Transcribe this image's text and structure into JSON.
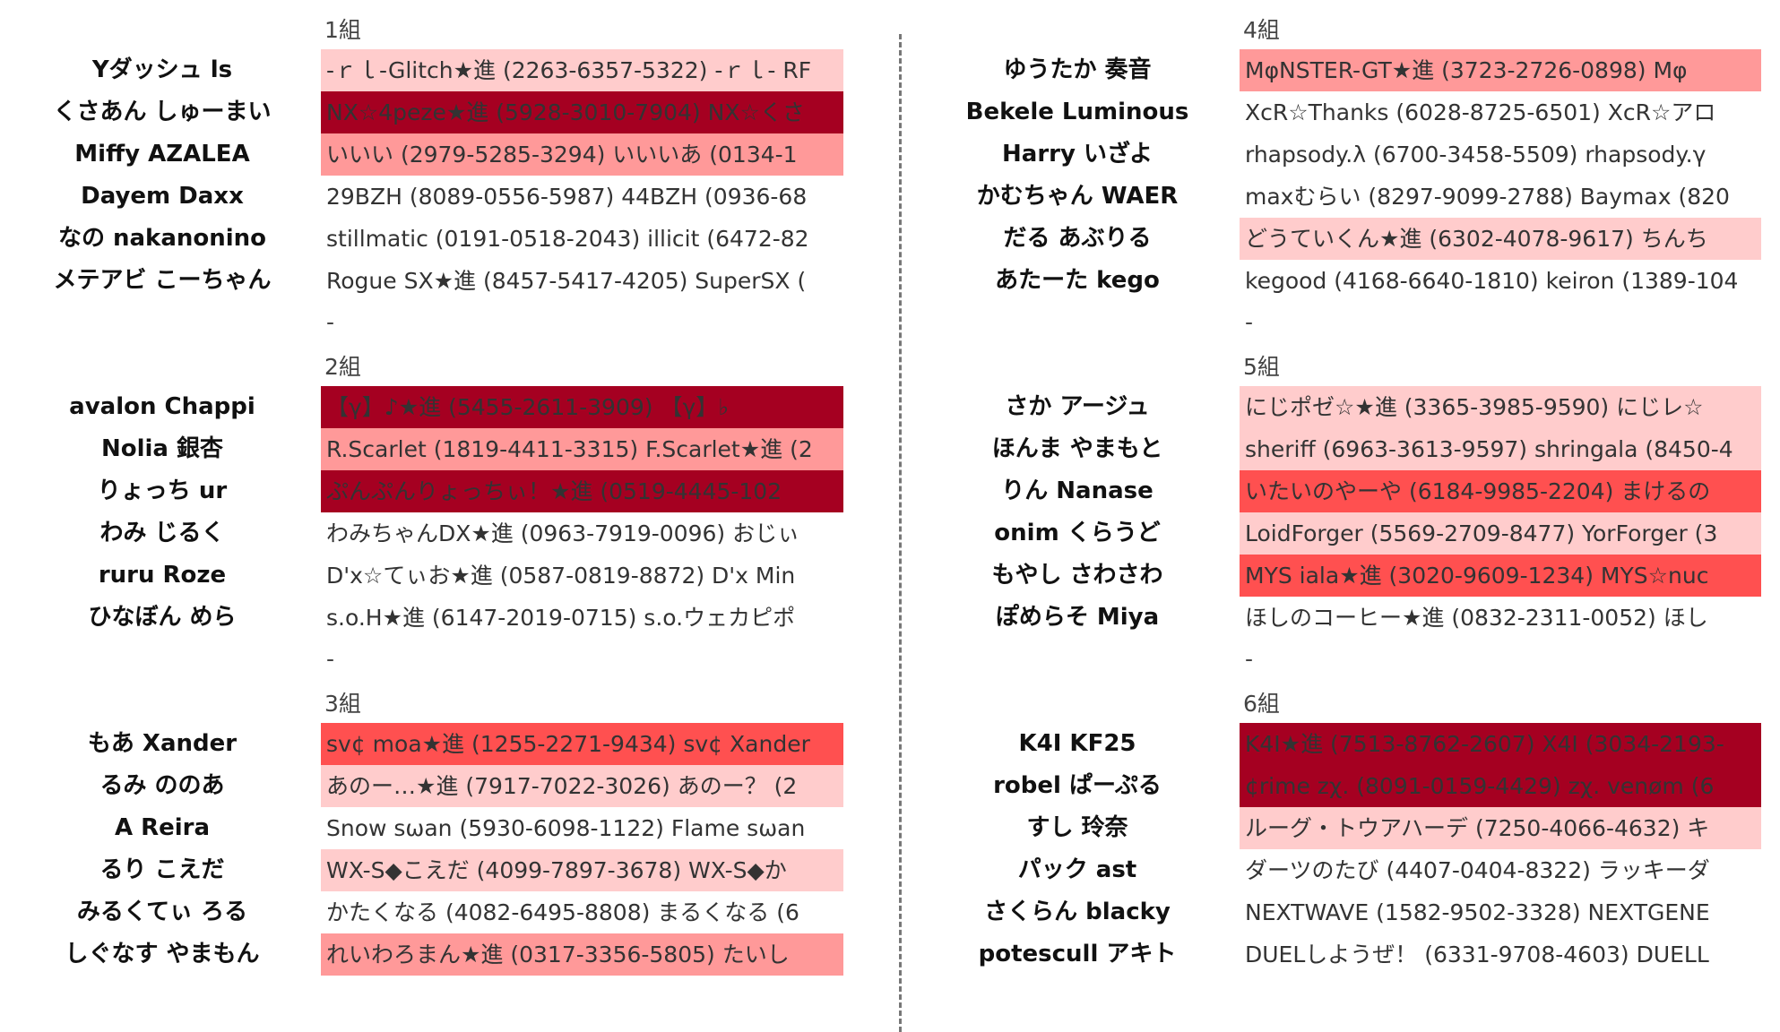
{
  "colors": {
    "light": "#ffcccc",
    "pink": "#ff9999",
    "red": "#ff5050",
    "dark": "#a50021",
    "none": "#ffffff"
  },
  "groups": [
    {
      "label": "1組",
      "trailer": "-",
      "rows": [
        {
          "name": "Yダッシュ ls",
          "value": "-ｒｌ-Glitch★進 (2263-6357-5322) -ｒｌ- RF",
          "color": "light"
        },
        {
          "name": "くさあん しゅーまい",
          "value": "NX☆4peze★進 (5928-3010-7904) NX☆くさ",
          "color": "dark"
        },
        {
          "name": "Miffy AZALEA",
          "value": "いいい (2979-5285-3294) いいいあ (0134-1",
          "color": "pink"
        },
        {
          "name": "Dayem Daxx",
          "value": "29BZH (8089-0556-5987) 44BZH (0936-68",
          "color": "none"
        },
        {
          "name": "なの nakanonino",
          "value": "stillmatic (0191-0518-2043) illicit (6472-82",
          "color": "none"
        },
        {
          "name": "メテアビ こーちゃん",
          "value": "Rogue SX★進 (8457-5417-4205) SuperSX (",
          "color": "none"
        }
      ]
    },
    {
      "label": "2組",
      "trailer": "-",
      "rows": [
        {
          "name": "avalon Chappi",
          "value": "【γ】♪★進 (5455-2611-3909) 【γ】♭",
          "color": "dark"
        },
        {
          "name": "Nolia 銀杏",
          "value": "R.Scarlet (1819-4411-3315) F.Scarlet★進 (2",
          "color": "pink"
        },
        {
          "name": "りょっち ur",
          "value": "ぷんぷんりょっちぃ！★進 (0519-4445-102",
          "color": "dark"
        },
        {
          "name": "わみ じるく",
          "value": "わみちゃんDX★進 (0963-7919-0096) おじぃ",
          "color": "none"
        },
        {
          "name": "ruru Roze",
          "value": "D'x☆てぃお★進 (0587-0819-8872) D'x Min",
          "color": "none"
        },
        {
          "name": "ひなぼん めら",
          "value": "s.o.H★進 (6147-2019-0715) s.o.ウェカピポ",
          "color": "none"
        }
      ]
    },
    {
      "label": "3組",
      "trailer": "",
      "rows": [
        {
          "name": "もあ Xander",
          "value": "sv¢ moa★進 (1255-2271-9434) sv¢ Xander",
          "color": "red"
        },
        {
          "name": "るみ ののあ",
          "value": "あのー…★進 (7917-7022-3026) あのー？ (2",
          "color": "light"
        },
        {
          "name": "A Reira",
          "value": "Snow sωan (5930-6098-1122) Flame sωan",
          "color": "none"
        },
        {
          "name": "るり こえだ",
          "value": "WX-S◆こえだ (4099-7897-3678) WX-S◆か",
          "color": "light"
        },
        {
          "name": "みるくてぃ ろる",
          "value": "かたくなる (4082-6495-8808) まるくなる (6",
          "color": "none"
        },
        {
          "name": "しぐなす やまもん",
          "value": "れいわろまん★進 (0317-3356-5805) たいし",
          "color": "pink"
        }
      ]
    },
    {
      "label": "4組",
      "trailer": "-",
      "rows": [
        {
          "name": "ゆうたか 奏音",
          "value": "MφNSTER-GT★進 (3723-2726-0898) Mφ",
          "color": "pink"
        },
        {
          "name": "Bekele Luminous",
          "value": "XcR☆Thanks (6028-8725-6501) XcR☆アロ",
          "color": "none"
        },
        {
          "name": "Harry いざよ",
          "value": "rhapsody.λ (6700-3458-5509) rhapsody.γ",
          "color": "none"
        },
        {
          "name": "かむちゃん WAER",
          "value": "maxむらい (8297-9099-2788) Baymax (820",
          "color": "none"
        },
        {
          "name": "だる あぶりる",
          "value": "どうていくん★進 (6302-4078-9617) ちんち",
          "color": "light"
        },
        {
          "name": "あたーた kego",
          "value": "kegood (4168-6640-1810) keiron (1389-104",
          "color": "none"
        }
      ]
    },
    {
      "label": "5組",
      "trailer": "-",
      "rows": [
        {
          "name": "さか アージュ",
          "value": "にじポゼ☆★進 (3365-3985-9590) にじレ☆",
          "color": "light"
        },
        {
          "name": "ほんま やまもと",
          "value": "sheriff (6963-3613-9597) shringala (8450-4",
          "color": "light"
        },
        {
          "name": "りん Nanase",
          "value": "いたいのやーや (6184-9985-2204) まけるの",
          "color": "red"
        },
        {
          "name": "onim くらうど",
          "value": "LoidForger (5569-2709-8477) YorForger (3",
          "color": "light"
        },
        {
          "name": "もやし さわさわ",
          "value": "MYS iala★進 (3020-9609-1234) MYS☆nuc",
          "color": "red"
        },
        {
          "name": "ぽめらそ Miya",
          "value": "ほしのコーヒー★進 (0832-2311-0052) ほし",
          "color": "none"
        }
      ]
    },
    {
      "label": "6組",
      "trailer": "",
      "rows": [
        {
          "name": "K4I KF25",
          "value": "K4I★進 (7513-8762-2607) X4I (3034-2193-",
          "color": "dark"
        },
        {
          "name": "robel ぱーぷる",
          "value": "¢rime zχ. (8091-0159-4429) zχ. venøm (6",
          "color": "dark"
        },
        {
          "name": "すし 玲奈",
          "value": "ルーグ・トウアハーデ (7250-4066-4632) キ",
          "color": "light"
        },
        {
          "name": "パック ast",
          "value": "ダーツのたび (4407-0404-8322) ラッキーダ",
          "color": "none"
        },
        {
          "name": "さくらん blacky",
          "value": "NEXTWAVE (1582-9502-3328) NEXTGENE",
          "color": "none"
        },
        {
          "name": "potescull アキト",
          "value": "DUELしようぜ！ (6331-9708-4603) DUELL",
          "color": "none"
        }
      ]
    }
  ]
}
